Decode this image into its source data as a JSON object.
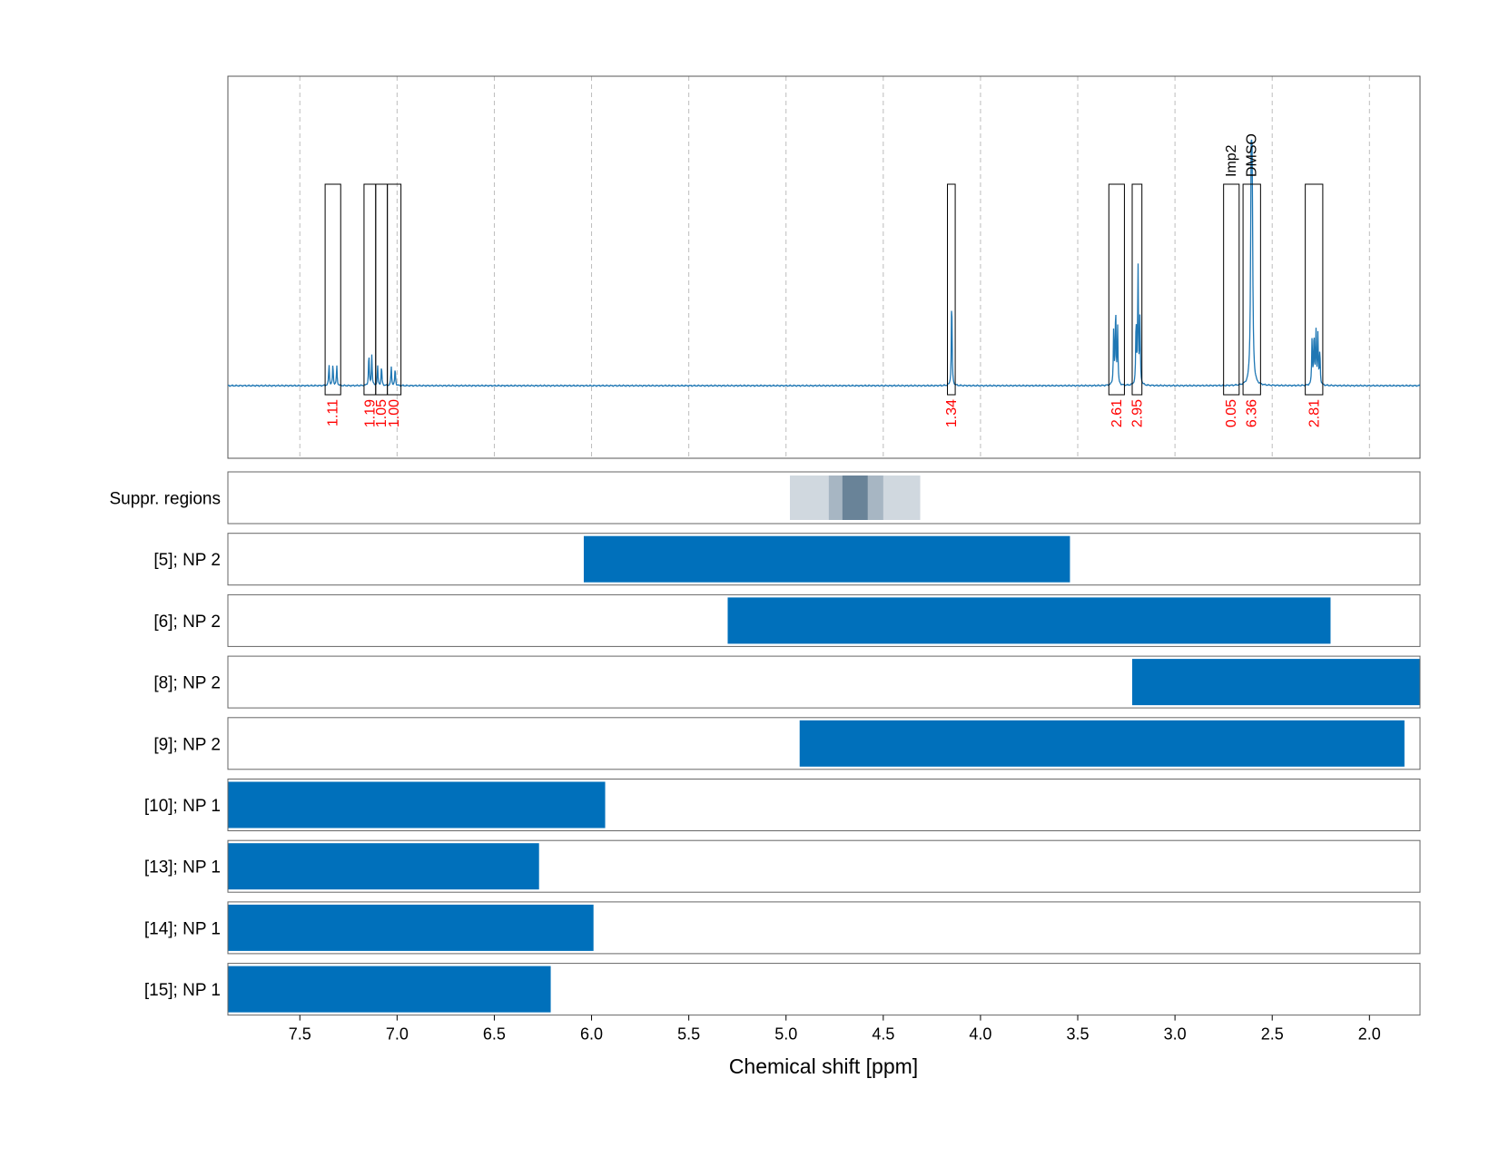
{
  "chart_data": {
    "type": "line",
    "xlabel": "Chemical shift [ppm]",
    "xlim": [
      7.87,
      1.74
    ],
    "xticks": [
      "7.5",
      "7.0",
      "6.5",
      "6.0",
      "5.5",
      "5.0",
      "4.5",
      "4.0",
      "3.5",
      "3.0",
      "2.5",
      "2.0"
    ],
    "grid": true,
    "spectrum_color": "#1f77b4",
    "integral_color": "#ff0000",
    "bar_color": "#0070bb",
    "integrals": [
      {
        "from": 7.37,
        "to": 7.29,
        "value": "1.11"
      },
      {
        "from": 7.17,
        "to": 7.11,
        "value": "1.19"
      },
      {
        "from": 7.11,
        "to": 7.05,
        "value": "1.05"
      },
      {
        "from": 7.05,
        "to": 6.98,
        "value": "1.00"
      },
      {
        "from": 4.17,
        "to": 4.13,
        "value": "1.34"
      },
      {
        "from": 3.34,
        "to": 3.26,
        "value": "2.61"
      },
      {
        "from": 3.22,
        "to": 3.17,
        "value": "2.95"
      },
      {
        "from": 2.75,
        "to": 2.67,
        "value": "0.05",
        "name": "Imp2"
      },
      {
        "from": 2.65,
        "to": 2.56,
        "value": "6.36",
        "name": "DMSO"
      },
      {
        "from": 2.33,
        "to": 2.24,
        "value": "2.81"
      }
    ],
    "peaks": [
      {
        "x": 7.35,
        "h": 0.1
      },
      {
        "x": 7.33,
        "h": 0.1
      },
      {
        "x": 7.31,
        "h": 0.09
      },
      {
        "x": 7.145,
        "h": 0.15
      },
      {
        "x": 7.13,
        "h": 0.14
      },
      {
        "x": 7.1,
        "h": 0.09
      },
      {
        "x": 7.08,
        "h": 0.09
      },
      {
        "x": 7.03,
        "h": 0.09
      },
      {
        "x": 7.01,
        "h": 0.08
      },
      {
        "x": 4.148,
        "h": 0.42
      },
      {
        "x": 3.315,
        "h": 0.27
      },
      {
        "x": 3.305,
        "h": 0.36
      },
      {
        "x": 3.295,
        "h": 0.27
      },
      {
        "x": 3.2,
        "h": 0.3
      },
      {
        "x": 3.19,
        "h": 0.55
      },
      {
        "x": 3.18,
        "h": 0.3
      },
      {
        "x": 2.608,
        "h": 0.9
      },
      {
        "x": 2.603,
        "h": 0.78
      },
      {
        "x": 2.295,
        "h": 0.22
      },
      {
        "x": 2.285,
        "h": 0.24
      },
      {
        "x": 2.275,
        "h": 0.25
      },
      {
        "x": 2.265,
        "h": 0.23
      },
      {
        "x": 2.255,
        "h": 0.16
      }
    ],
    "suppression_regions": [
      {
        "from": 4.98,
        "to": 4.31,
        "opacity": 0.22
      },
      {
        "from": 4.78,
        "to": 4.5,
        "opacity": 0.25
      },
      {
        "from": 4.71,
        "to": 4.58,
        "opacity": 0.5
      }
    ],
    "rows": [
      {
        "label": "Suppr. regions",
        "type": "suppression"
      },
      {
        "label": "[5]; NP 2",
        "from": 6.04,
        "to": 3.54
      },
      {
        "label": "[6]; NP 2",
        "from": 5.3,
        "to": 2.2
      },
      {
        "label": "[8]; NP 2",
        "from": 3.22,
        "to": 1.74
      },
      {
        "label": "[9]; NP 2",
        "from": 4.93,
        "to": 1.82
      },
      {
        "label": "[10]; NP 1",
        "from": 7.87,
        "to": 5.93
      },
      {
        "label": "[13]; NP 1",
        "from": 7.87,
        "to": 6.27
      },
      {
        "label": "[14]; NP 1",
        "from": 7.87,
        "to": 5.99
      },
      {
        "label": "[15]; NP 1",
        "from": 7.87,
        "to": 6.21
      }
    ]
  }
}
